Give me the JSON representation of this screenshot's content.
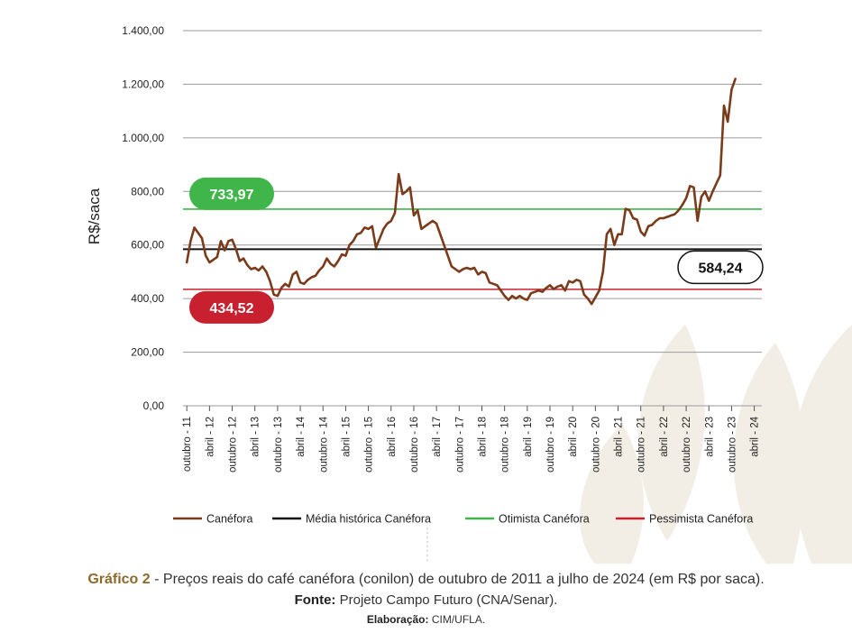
{
  "chart_data": {
    "type": "line",
    "ylabel": "R$/saca",
    "ylim": [
      0,
      1400
    ],
    "yticks": [
      {
        "value": 0,
        "label": "0,00"
      },
      {
        "value": 200,
        "label": "200,00"
      },
      {
        "value": 400,
        "label": "400,00"
      },
      {
        "value": 600,
        "label": "600,00"
      },
      {
        "value": 800,
        "label": "800,00"
      },
      {
        "value": 1000,
        "label": "1.000,00"
      },
      {
        "value": 1200,
        "label": "1.200,00"
      },
      {
        "value": 1400,
        "label": "1.400,00"
      }
    ],
    "xticks": [
      {
        "t": 0,
        "label": "outubro - 11"
      },
      {
        "t": 6,
        "label": "abril - 12"
      },
      {
        "t": 12,
        "label": "outubro - 12"
      },
      {
        "t": 18,
        "label": "abril - 13"
      },
      {
        "t": 24,
        "label": "outubro - 13"
      },
      {
        "t": 30,
        "label": "abril - 14"
      },
      {
        "t": 36,
        "label": "outubro - 14"
      },
      {
        "t": 42,
        "label": "abril - 15"
      },
      {
        "t": 48,
        "label": "outubro - 15"
      },
      {
        "t": 54,
        "label": "abril - 16"
      },
      {
        "t": 60,
        "label": "outubro - 16"
      },
      {
        "t": 66,
        "label": "abril - 17"
      },
      {
        "t": 72,
        "label": "outubro - 17"
      },
      {
        "t": 78,
        "label": "abril - 18"
      },
      {
        "t": 84,
        "label": "outubro - 18"
      },
      {
        "t": 90,
        "label": "abril - 19"
      },
      {
        "t": 96,
        "label": "outubro - 19"
      },
      {
        "t": 102,
        "label": "abril - 20"
      },
      {
        "t": 108,
        "label": "outubro - 20"
      },
      {
        "t": 114,
        "label": "abril - 21"
      },
      {
        "t": 120,
        "label": "outubro - 21"
      },
      {
        "t": 126,
        "label": "abril - 22"
      },
      {
        "t": 132,
        "label": "outubro - 22"
      },
      {
        "t": 138,
        "label": "abril - 23"
      },
      {
        "t": 144,
        "label": "outubro - 23"
      },
      {
        "t": 150,
        "label": "abril - 24"
      }
    ],
    "x_range": [
      -1,
      152
    ],
    "series": [
      {
        "name": "Canéfora",
        "color": "#7a3b1a",
        "points": [
          [
            0,
            535
          ],
          [
            1,
            615
          ],
          [
            2,
            665
          ],
          [
            3,
            645
          ],
          [
            4,
            625
          ],
          [
            5,
            560
          ],
          [
            6,
            535
          ],
          [
            7,
            545
          ],
          [
            8,
            555
          ],
          [
            9,
            615
          ],
          [
            10,
            580
          ],
          [
            11,
            615
          ],
          [
            12,
            620
          ],
          [
            13,
            585
          ],
          [
            14,
            540
          ],
          [
            15,
            550
          ],
          [
            16,
            525
          ],
          [
            17,
            510
          ],
          [
            18,
            515
          ],
          [
            19,
            505
          ],
          [
            20,
            520
          ],
          [
            21,
            500
          ],
          [
            22,
            465
          ],
          [
            23,
            415
          ],
          [
            24,
            410
          ],
          [
            25,
            440
          ],
          [
            26,
            455
          ],
          [
            27,
            445
          ],
          [
            28,
            490
          ],
          [
            29,
            500
          ],
          [
            30,
            460
          ],
          [
            31,
            455
          ],
          [
            32,
            470
          ],
          [
            33,
            480
          ],
          [
            34,
            485
          ],
          [
            35,
            505
          ],
          [
            36,
            520
          ],
          [
            37,
            550
          ],
          [
            38,
            530
          ],
          [
            39,
            520
          ],
          [
            40,
            540
          ],
          [
            41,
            565
          ],
          [
            42,
            560
          ],
          [
            43,
            600
          ],
          [
            44,
            615
          ],
          [
            45,
            640
          ],
          [
            46,
            645
          ],
          [
            47,
            665
          ],
          [
            48,
            660
          ],
          [
            49,
            670
          ],
          [
            50,
            590
          ],
          [
            51,
            625
          ],
          [
            52,
            660
          ],
          [
            53,
            680
          ],
          [
            54,
            690
          ],
          [
            55,
            720
          ],
          [
            56,
            865
          ],
          [
            57,
            790
          ],
          [
            58,
            800
          ],
          [
            59,
            815
          ],
          [
            60,
            710
          ],
          [
            61,
            730
          ],
          [
            62,
            660
          ],
          [
            63,
            670
          ],
          [
            64,
            680
          ],
          [
            65,
            690
          ],
          [
            66,
            680
          ],
          [
            67,
            640
          ],
          [
            68,
            600
          ],
          [
            69,
            560
          ],
          [
            70,
            520
          ],
          [
            71,
            510
          ],
          [
            72,
            500
          ],
          [
            73,
            510
          ],
          [
            74,
            515
          ],
          [
            75,
            510
          ],
          [
            76,
            515
          ],
          [
            77,
            490
          ],
          [
            78,
            500
          ],
          [
            79,
            495
          ],
          [
            80,
            460
          ],
          [
            81,
            455
          ],
          [
            82,
            450
          ],
          [
            83,
            430
          ],
          [
            84,
            410
          ],
          [
            85,
            395
          ],
          [
            86,
            410
          ],
          [
            87,
            400
          ],
          [
            88,
            410
          ],
          [
            89,
            400
          ],
          [
            90,
            395
          ],
          [
            91,
            420
          ],
          [
            92,
            425
          ],
          [
            93,
            430
          ],
          [
            94,
            425
          ],
          [
            95,
            440
          ],
          [
            96,
            450
          ],
          [
            97,
            435
          ],
          [
            98,
            445
          ],
          [
            99,
            450
          ],
          [
            100,
            430
          ],
          [
            101,
            465
          ],
          [
            102,
            460
          ],
          [
            103,
            470
          ],
          [
            104,
            465
          ],
          [
            105,
            415
          ],
          [
            106,
            400
          ],
          [
            107,
            380
          ],
          [
            108,
            405
          ],
          [
            109,
            430
          ],
          [
            110,
            500
          ],
          [
            111,
            640
          ],
          [
            112,
            660
          ],
          [
            113,
            600
          ],
          [
            114,
            640
          ],
          [
            115,
            640
          ],
          [
            116,
            735
          ],
          [
            117,
            730
          ],
          [
            118,
            700
          ],
          [
            119,
            695
          ],
          [
            120,
            650
          ],
          [
            121,
            635
          ],
          [
            122,
            670
          ],
          [
            123,
            675
          ],
          [
            124,
            690
          ],
          [
            125,
            700
          ],
          [
            126,
            700
          ],
          [
            127,
            705
          ],
          [
            128,
            710
          ],
          [
            129,
            715
          ],
          [
            130,
            730
          ],
          [
            131,
            750
          ],
          [
            132,
            775
          ],
          [
            133,
            820
          ],
          [
            134,
            815
          ],
          [
            135,
            690
          ],
          [
            136,
            780
          ],
          [
            137,
            800
          ],
          [
            138,
            765
          ],
          [
            139,
            800
          ],
          [
            140,
            830
          ],
          [
            141,
            860
          ],
          [
            142,
            1120
          ],
          [
            143,
            1060
          ],
          [
            144,
            1180
          ],
          [
            145,
            1220
          ]
        ]
      },
      {
        "name": "Média histórica Canéfora",
        "color": "#111111",
        "constant": 584.24
      },
      {
        "name": "Otimista Canéfora",
        "color": "#3fb54a",
        "constant": 733.97
      },
      {
        "name": "Pessimista Canéfora",
        "color": "#c8202f",
        "constant": 434.52
      }
    ],
    "badges": [
      {
        "label": "733,97",
        "value": 733.97,
        "style": "green"
      },
      {
        "label": "434,52",
        "value": 434.52,
        "style": "red"
      },
      {
        "label": "584,24",
        "value": 584.24,
        "style": "outline"
      }
    ],
    "legend": [
      "Canéfora",
      "Média histórica Canéfora",
      "Otimista Canéfora",
      "Pessimista Canéfora"
    ]
  },
  "caption": {
    "label": "Gráfico 2",
    "text": " - Preços reais do café canéfora (conilon) de outubro de 2011 a julho de 2024 (em R$ por saca).",
    "source_label": "Fonte:",
    "source_text": " Projeto Campo Futuro (CNA/Senar).",
    "credit_label": "Elaboração:",
    "credit_text": " CIM/UFLA."
  },
  "colors": {
    "green_badge": "#3fb54a",
    "red_badge": "#c8202f",
    "line": "#7a3b1a",
    "caption_label": "#8b6a2b",
    "watermark": "#f1ebe0"
  }
}
